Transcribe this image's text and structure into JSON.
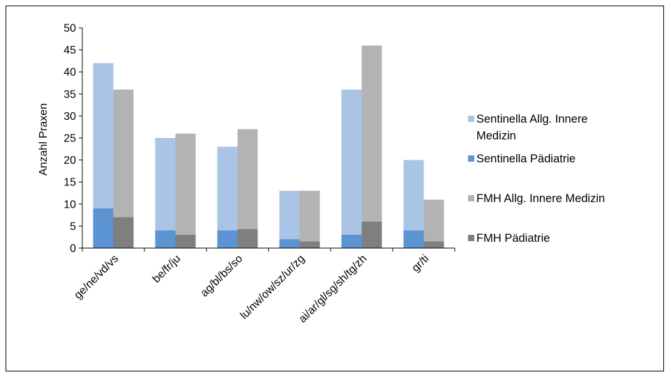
{
  "chart_data": {
    "type": "bar",
    "title": "",
    "xlabel": "",
    "ylabel": "Anzahl Praxen",
    "ylim": [
      0,
      50
    ],
    "yticks": [
      0,
      5,
      10,
      15,
      20,
      25,
      30,
      35,
      40,
      45,
      50
    ],
    "grid": false,
    "legend_position": "right",
    "categories": [
      "ge/ne/vd/vs",
      "be/fr/ju",
      "ag/bl/bs/so",
      "lu/nw/ow/sz/ur/zg",
      "ai/ar/gl/sg/sh/tg/zh",
      "gr/ti"
    ],
    "stacks": [
      {
        "name": "Sentinella",
        "series": [
          {
            "name": "Sentinella Allg. Innere Medizin",
            "values": [
              42,
              25,
              23,
              13,
              36,
              20
            ],
            "color": "#a9c4e5"
          },
          {
            "name": "Sentinella Pädiatrie",
            "values": [
              9,
              4,
              4,
              2,
              3,
              4
            ],
            "color": "#5b93d3"
          }
        ]
      },
      {
        "name": "FMH",
        "series": [
          {
            "name": "FMH Allg. Innere Medizin",
            "values": [
              36,
              26,
              27,
              13,
              46,
              11
            ],
            "color": "#b3b3b3"
          },
          {
            "name": "FMH Pädiatrie",
            "values": [
              7,
              3,
              4.3,
              1.5,
              6,
              1.5
            ],
            "color": "#7f7f7f"
          }
        ]
      }
    ]
  },
  "legend": [
    {
      "lines": [
        "Sentinella Allg. Innere",
        "Medizin"
      ],
      "color": "#a9c4e5"
    },
    {
      "lines": [
        "Sentinella Pädiatrie"
      ],
      "color": "#5b93d3"
    },
    {
      "lines": [
        "FMH Allg. Innere Medizin"
      ],
      "color": "#b3b3b3"
    },
    {
      "lines": [
        "FMH Pädiatrie"
      ],
      "color": "#7f7f7f"
    }
  ]
}
